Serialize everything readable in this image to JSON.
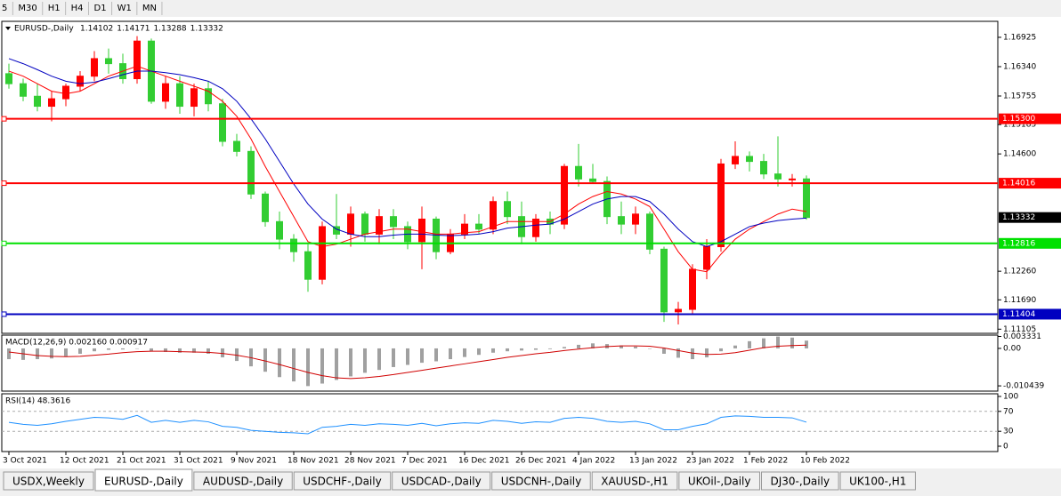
{
  "toolbar": {
    "timeframes": [
      "5",
      "M30",
      "H1",
      "H4",
      "D1",
      "W1",
      "MN"
    ]
  },
  "chart_data": [
    {
      "type": "candlestick",
      "symbol": "EURUSD-,Daily",
      "up_color": "#ff0000",
      "down_color": "#32cd32",
      "categories": [
        "3 Oct 2021",
        null,
        null,
        null,
        "12 Oct 2021",
        null,
        null,
        null,
        "21 Oct 2021",
        null,
        null,
        null,
        "31 Oct 2021",
        null,
        null,
        null,
        "9 Nov 2021",
        null,
        null,
        null,
        "18 Nov 2021",
        null,
        null,
        null,
        "28 Nov 2021",
        null,
        null,
        null,
        "7 Dec 2021",
        null,
        null,
        null,
        "16 Dec 2021",
        null,
        null,
        null,
        "26 Dec 2021",
        null,
        null,
        null,
        "4 Jan 2022",
        null,
        null,
        null,
        "13 Jan 2022",
        null,
        null,
        null,
        "23 Jan 2022",
        null,
        null,
        null,
        "1 Feb 2022",
        null,
        null,
        null,
        "10 Feb 2022"
      ],
      "ohlc": [
        [
          1.162,
          1.164,
          1.159,
          1.16
        ],
        [
          1.16,
          1.161,
          1.1565,
          1.1575
        ],
        [
          1.1575,
          1.16,
          1.1545,
          1.1555
        ],
        [
          1.1555,
          1.1585,
          1.1525,
          1.157
        ],
        [
          1.157,
          1.16,
          1.1555,
          1.1595
        ],
        [
          1.1595,
          1.1625,
          1.1585,
          1.1615
        ],
        [
          1.1615,
          1.1665,
          1.1605,
          1.165
        ],
        [
          1.165,
          1.167,
          1.162,
          1.164
        ],
        [
          1.164,
          1.166,
          1.16,
          1.161
        ],
        [
          1.161,
          1.1695,
          1.16,
          1.1685
        ],
        [
          1.1685,
          1.169,
          1.156,
          1.1565
        ],
        [
          1.1565,
          1.1615,
          1.155,
          1.16
        ],
        [
          1.16,
          1.1615,
          1.154,
          1.1555
        ],
        [
          1.1555,
          1.16,
          1.1535,
          1.159
        ],
        [
          1.159,
          1.1605,
          1.1545,
          1.156
        ],
        [
          1.156,
          1.157,
          1.1475,
          1.1485
        ],
        [
          1.1485,
          1.15,
          1.1455,
          1.1465
        ],
        [
          1.1465,
          1.1475,
          1.137,
          1.138
        ],
        [
          1.138,
          1.1385,
          1.1315,
          1.1325
        ],
        [
          1.1325,
          1.1345,
          1.127,
          1.129
        ],
        [
          1.129,
          1.13,
          1.1245,
          1.1265
        ],
        [
          1.1265,
          1.128,
          1.1185,
          1.121
        ],
        [
          1.121,
          1.1325,
          1.12,
          1.1315
        ],
        [
          1.1315,
          1.138,
          1.129,
          1.13
        ],
        [
          1.13,
          1.1355,
          1.1275,
          1.134
        ],
        [
          1.134,
          1.1345,
          1.1285,
          1.13
        ],
        [
          1.13,
          1.135,
          1.128,
          1.1335
        ],
        [
          1.1335,
          1.135,
          1.129,
          1.1315
        ],
        [
          1.1315,
          1.1325,
          1.127,
          1.1285
        ],
        [
          1.1285,
          1.1355,
          1.123,
          1.133
        ],
        [
          1.133,
          1.1335,
          1.125,
          1.1265
        ],
        [
          1.1265,
          1.131,
          1.126,
          1.13
        ],
        [
          1.13,
          1.134,
          1.129,
          1.132
        ],
        [
          1.132,
          1.134,
          1.13,
          1.131
        ],
        [
          1.131,
          1.1375,
          1.13,
          1.1365
        ],
        [
          1.1365,
          1.1385,
          1.132,
          1.1335
        ],
        [
          1.1335,
          1.1365,
          1.128,
          1.1295
        ],
        [
          1.1295,
          1.134,
          1.1285,
          1.133
        ],
        [
          1.133,
          1.1345,
          1.13,
          1.132
        ],
        [
          1.132,
          1.144,
          1.131,
          1.1435
        ],
        [
          1.1435,
          1.148,
          1.1395,
          1.141
        ],
        [
          1.141,
          1.144,
          1.14,
          1.1405
        ],
        [
          1.1405,
          1.1415,
          1.132,
          1.1335
        ],
        [
          1.1335,
          1.1365,
          1.13,
          1.132
        ],
        [
          1.132,
          1.1355,
          1.13,
          1.134
        ],
        [
          1.134,
          1.1345,
          1.126,
          1.127
        ],
        [
          1.127,
          1.1275,
          1.1125,
          1.1145
        ],
        [
          1.1145,
          1.1165,
          1.112,
          1.115
        ],
        [
          1.115,
          1.124,
          1.114,
          1.123
        ],
        [
          1.123,
          1.129,
          1.121,
          1.1275
        ],
        [
          1.1275,
          1.145,
          1.1265,
          1.144
        ],
        [
          1.144,
          1.1485,
          1.143,
          1.1455
        ],
        [
          1.1455,
          1.1465,
          1.1425,
          1.1445
        ],
        [
          1.1445,
          1.146,
          1.141,
          1.142
        ],
        [
          1.142,
          1.1495,
          1.1395,
          1.141
        ],
        [
          1.141,
          1.142,
          1.1395,
          1.141
        ],
        [
          1.14102,
          1.14171,
          1.13288,
          1.13332
        ]
      ],
      "series": [
        {
          "color": "#ff0000",
          "values": [
            1.1625,
            1.1615,
            1.16,
            1.1585,
            1.158,
            1.1585,
            1.16,
            1.1615,
            1.1625,
            1.1635,
            1.1625,
            1.1615,
            1.1605,
            1.1595,
            1.1585,
            1.1565,
            1.1535,
            1.149,
            1.1435,
            1.1385,
            1.1335,
            1.1285,
            1.1275,
            1.128,
            1.129,
            1.13,
            1.1305,
            1.131,
            1.131,
            1.1305,
            1.13,
            1.13,
            1.1303,
            1.1305,
            1.1315,
            1.1325,
            1.1325,
            1.1325,
            1.1325,
            1.134,
            1.136,
            1.1375,
            1.1385,
            1.138,
            1.137,
            1.1355,
            1.131,
            1.1265,
            1.123,
            1.1225,
            1.126,
            1.129,
            1.131,
            1.1325,
            1.134,
            1.135,
            1.1345
          ]
        },
        {
          "color": "#0000c0",
          "values": [
            1.165,
            1.164,
            1.1628,
            1.1615,
            1.1605,
            1.16,
            1.1603,
            1.161,
            1.1618,
            1.1625,
            1.1625,
            1.1622,
            1.1618,
            1.1612,
            1.1605,
            1.159,
            1.1565,
            1.153,
            1.149,
            1.1445,
            1.14,
            1.136,
            1.133,
            1.131,
            1.13,
            1.1295,
            1.1295,
            1.1298,
            1.13,
            1.13,
            1.1298,
            1.1297,
            1.1298,
            1.13,
            1.1305,
            1.1312,
            1.1315,
            1.1318,
            1.132,
            1.133,
            1.1345,
            1.136,
            1.137,
            1.1375,
            1.1375,
            1.1365,
            1.134,
            1.131,
            1.1285,
            1.1275,
            1.1285,
            1.13,
            1.1315,
            1.1322,
            1.1327,
            1.133,
            1.1332
          ]
        }
      ],
      "hlines": [
        {
          "value": 1.153,
          "label": "1.15300",
          "color": "#ff0000"
        },
        {
          "value": 1.14016,
          "label": "1.14016",
          "color": "#ff0000"
        },
        {
          "value": 1.12816,
          "label": "1.12816",
          "color": "#00e000"
        },
        {
          "value": 1.11404,
          "label": "1.11404",
          "color": "#0000c0"
        }
      ],
      "ylim": [
        1.11022,
        1.17226
      ],
      "yticks": [
        {
          "value": 1.16925,
          "label": "1.16925"
        },
        {
          "value": 1.1634,
          "label": "1.16340"
        },
        {
          "value": 1.15755,
          "label": "1.15755"
        },
        {
          "value": 1.15185,
          "label": "1.15185"
        },
        {
          "value": 1.146,
          "label": "1.14600"
        },
        {
          "value": 1.1226,
          "label": "1.12260"
        },
        {
          "value": 1.1169,
          "label": "1.11690"
        },
        {
          "value": 1.11105,
          "label": "1.11105"
        }
      ]
    },
    {
      "type": "macd",
      "title": "MACD(12,26,9) 0.002160 0.000917",
      "series": [
        {
          "color": "#a0a0a0",
          "values": [
            -0.003,
            -0.0032,
            -0.003,
            -0.0028,
            -0.0022,
            -0.0015,
            -0.0008,
            -0.0004,
            -0.0003,
            0,
            -0.0008,
            -0.001,
            -0.0012,
            -0.0012,
            -0.0015,
            -0.0025,
            -0.0035,
            -0.005,
            -0.0065,
            -0.008,
            -0.0092,
            -0.0105,
            -0.0098,
            -0.0088,
            -0.0078,
            -0.0068,
            -0.006,
            -0.0052,
            -0.0046,
            -0.004,
            -0.0036,
            -0.003,
            -0.0024,
            -0.0018,
            -0.0012,
            -0.0008,
            -0.0006,
            -0.0004,
            -0.0002,
            0.0004,
            0.001,
            0.0014,
            0.0012,
            0.0008,
            0.0005,
            0,
            -0.0015,
            -0.0026,
            -0.003,
            -0.0025,
            -0.0008,
            0.0008,
            0.002,
            0.0028,
            0.0033,
            0.003,
            0.00216
          ]
        },
        {
          "color": "#d00000",
          "values": [
            -0.001,
            -0.0015,
            -0.002,
            -0.0022,
            -0.0023,
            -0.0022,
            -0.0019,
            -0.0016,
            -0.0012,
            -0.0009,
            -0.0008,
            -0.0008,
            -0.0009,
            -0.001,
            -0.0011,
            -0.0014,
            -0.0019,
            -0.0026,
            -0.0035,
            -0.0045,
            -0.0056,
            -0.0067,
            -0.0076,
            -0.0082,
            -0.0084,
            -0.0082,
            -0.0078,
            -0.0073,
            -0.0067,
            -0.0061,
            -0.0055,
            -0.0049,
            -0.0043,
            -0.0037,
            -0.0031,
            -0.0025,
            -0.002,
            -0.0015,
            -0.0011,
            -0.0006,
            -0.0002,
            0.0002,
            0.0005,
            0.0007,
            0.0007,
            0.0006,
            0.0001,
            -0.0006,
            -0.0013,
            -0.0017,
            -0.0016,
            -0.0012,
            -0.0005,
            0.0002,
            0.0006,
            0.0008,
            0.000917
          ]
        }
      ],
      "ylim": [
        -0.0119,
        0.0037
      ],
      "yticks": [
        0.003331,
        {
          "value": 0,
          "label": "0.00"
        },
        -0.010439
      ]
    },
    {
      "type": "line",
      "title": "RSI(14) 48.3616",
      "series": [
        {
          "color": "#1e90ff",
          "values": [
            48,
            44,
            42,
            45,
            50,
            54,
            58,
            57,
            54,
            62,
            48,
            52,
            48,
            52,
            49,
            40,
            38,
            32,
            30,
            28,
            27,
            25,
            38,
            40,
            44,
            42,
            45,
            44,
            42,
            46,
            41,
            45,
            47,
            46,
            52,
            50,
            46,
            49,
            48,
            56,
            58,
            56,
            50,
            48,
            50,
            45,
            33,
            33,
            40,
            45,
            58,
            61,
            60,
            58,
            58,
            57,
            48.3616
          ]
        }
      ],
      "ylim": [
        0,
        100
      ],
      "yticks": [
        100,
        70,
        30,
        0
      ]
    }
  ],
  "tabs": [
    "USDX,Weekly",
    "EURUSD-,Daily",
    "AUDUSD-,Daily",
    "USDCHF-,Daily",
    "USDCAD-,Daily",
    "USDCNH-,Daily",
    "XAUUSD-,H1",
    "UKOil-,Daily",
    "DJ30-,Daily",
    "UK100-,H1"
  ],
  "active_tab": 1
}
